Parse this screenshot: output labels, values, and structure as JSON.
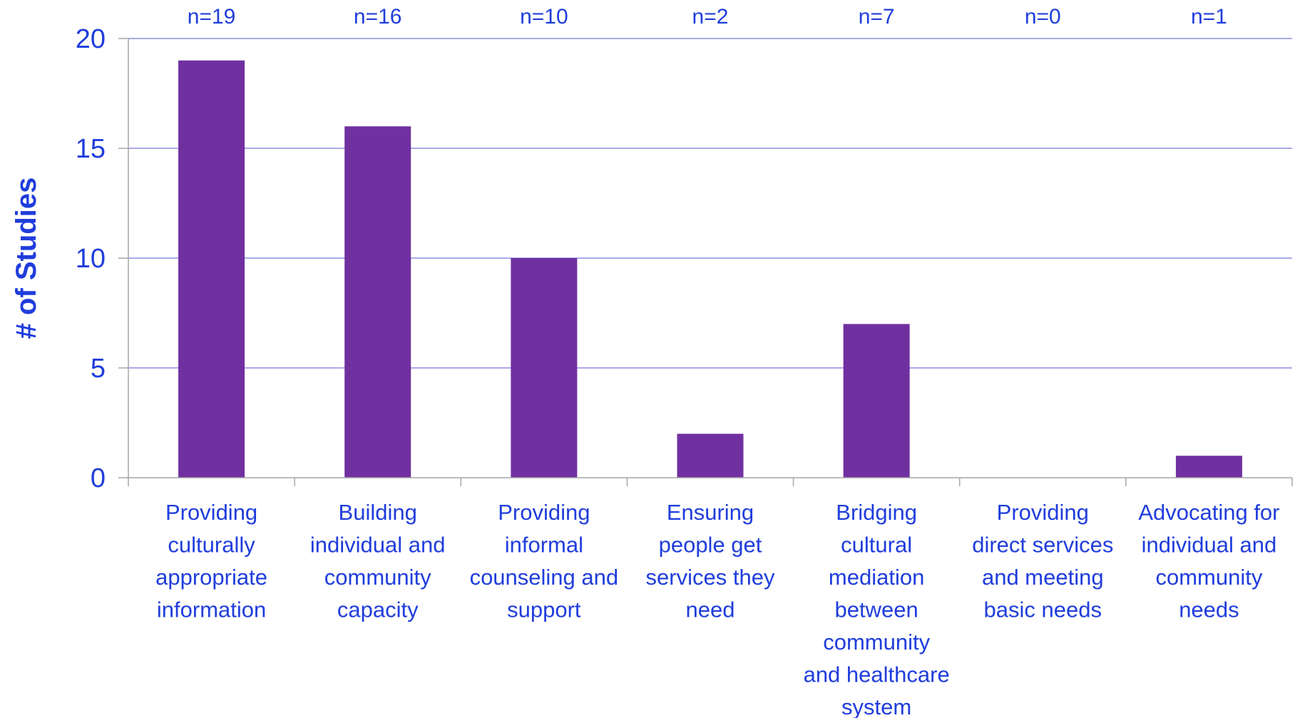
{
  "chart_data": {
    "type": "bar",
    "title": "",
    "xlabel": "",
    "ylabel": "# of Studies",
    "ylim": [
      0,
      20
    ],
    "yticks": [
      "0",
      "5",
      "10",
      "15",
      "20"
    ],
    "grid": true,
    "legend": "none",
    "categories": [
      [
        "Providing",
        "culturally",
        "appropriate",
        "information"
      ],
      [
        "Building",
        "individual and",
        "community",
        "capacity"
      ],
      [
        "Providing",
        "informal",
        "counseling and",
        "support"
      ],
      [
        "Ensuring",
        "people get",
        "services they",
        "need"
      ],
      [
        "Bridging",
        "cultural",
        "mediation",
        "between",
        "community",
        "and healthcare",
        "system"
      ],
      [
        "Providing",
        "direct services",
        "and meeting",
        "basic needs"
      ],
      [
        "Advocating for",
        "individual and",
        "community",
        "needs"
      ]
    ],
    "values": [
      19,
      16,
      10,
      2,
      7,
      0,
      1
    ],
    "annotations": [
      "n=19",
      "n=16",
      "n=10",
      "n=2",
      "n=7",
      "n=0",
      "n=1"
    ]
  },
  "colors": {
    "bar": "#7030a0",
    "text": "#1f3ddc",
    "gridline": "#8e8ee0",
    "axis": "#a6a6a6"
  }
}
